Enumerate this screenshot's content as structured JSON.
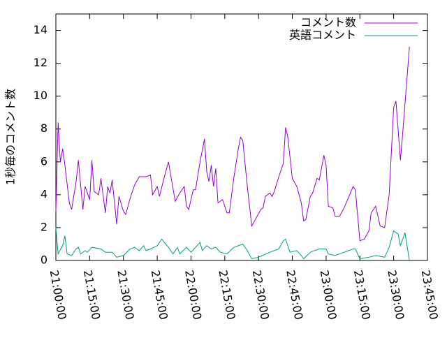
{
  "chart_data": {
    "type": "line",
    "y_label": "1秒毎のコメント数",
    "xlim": [
      "21:00:00",
      "23:45:00"
    ],
    "xticks": [
      "21:00:00",
      "21:15:00",
      "21:30:00",
      "21:45:00",
      "22:00:00",
      "22:15:00",
      "22:30:00",
      "22:45:00",
      "23:00:00",
      "23:15:00",
      "23:30:00",
      "23:45:00"
    ],
    "ylim": [
      0,
      15
    ],
    "yticks": [
      0,
      2,
      4,
      6,
      8,
      10,
      12,
      14
    ],
    "legend": "top-right",
    "series": [
      {
        "name": "コメント数",
        "color": "#9400d3",
        "x": [
          "21:00:00",
          "21:01:00",
          "21:02:00",
          "21:03:00",
          "21:04:00",
          "21:06:00",
          "21:07:00",
          "21:09:00",
          "21:10:00",
          "21:12:00",
          "21:13:00",
          "21:15:00",
          "21:16:00",
          "21:17:00",
          "21:19:00",
          "21:20:00",
          "21:22:00",
          "21:23:00",
          "21:24:00",
          "21:25:00",
          "21:27:00",
          "21:28:00",
          "21:30:00",
          "21:31:00",
          "21:33:00",
          "21:35:00",
          "21:37:00",
          "21:40:00",
          "21:42:00",
          "21:43:00",
          "21:45:00",
          "21:46:00",
          "21:48:00",
          "21:50:00",
          "21:51:00",
          "21:53:00",
          "21:55:00",
          "21:57:00",
          "21:58:00",
          "21:59:00",
          "22:01:00",
          "22:02:00",
          "22:04:00",
          "22:06:00",
          "22:07:00",
          "22:08:00",
          "22:09:00",
          "22:10:00",
          "22:11:00",
          "22:12:00",
          "22:14:00",
          "22:15:00",
          "22:16:00",
          "22:17:00",
          "22:19:00",
          "22:21:00",
          "22:22:00",
          "22:23:00",
          "22:25:00",
          "22:27:00",
          "22:29:00",
          "22:31:00",
          "22:32:00",
          "22:33:00",
          "22:35:00",
          "22:36:00",
          "22:37:00",
          "22:39:00",
          "22:41:00",
          "22:42:00",
          "22:43:00",
          "22:45:00",
          "22:47:00",
          "22:49:00",
          "22:50:00",
          "22:51:00",
          "22:53:00",
          "22:54:00",
          "22:56:00",
          "22:57:00",
          "22:59:00",
          "23:00:00",
          "23:01:00",
          "23:03:00",
          "23:04:00",
          "23:06:00",
          "23:08:00",
          "23:12:00",
          "23:13:00",
          "23:15:00",
          "23:17:00",
          "23:19:00",
          "23:20:00",
          "23:22:00",
          "23:24:00",
          "23:26:00",
          "23:28:00",
          "23:30:00",
          "23:31:00",
          "23:33:00",
          "23:34:00",
          "23:37:00"
        ],
        "values": [
          3.0,
          8.4,
          6.0,
          6.8,
          5.8,
          3.5,
          3.1,
          4.8,
          6.1,
          3.1,
          4.5,
          3.7,
          6.1,
          4.2,
          4.0,
          5.0,
          2.9,
          4.5,
          4.1,
          4.9,
          2.2,
          3.9,
          3.0,
          2.8,
          3.8,
          4.6,
          5.1,
          5.1,
          5.2,
          4.0,
          4.5,
          3.9,
          5.0,
          6.0,
          5.2,
          3.6,
          4.1,
          4.5,
          3.3,
          3.1,
          4.3,
          4.3,
          6.0,
          7.4,
          5.4,
          4.8,
          5.8,
          4.5,
          5.6,
          3.5,
          3.7,
          3.3,
          2.9,
          2.9,
          5.0,
          6.8,
          7.5,
          7.3,
          4.5,
          2.1,
          2.6,
          3.1,
          3.2,
          3.9,
          4.1,
          3.9,
          4.2,
          5.1,
          5.9,
          8.1,
          7.5,
          5.0,
          4.5,
          3.5,
          2.4,
          2.5,
          3.9,
          4.1,
          5.0,
          4.9,
          6.4,
          5.8,
          3.3,
          3.2,
          2.7,
          2.7,
          3.2,
          4.5,
          4.3,
          1.2,
          1.3,
          1.8,
          2.9,
          3.3,
          2.1,
          2.0,
          4.0,
          9.3,
          9.7,
          6.1,
          7.7,
          13.0
        ]
      },
      {
        "name": "英語コメント",
        "color": "#009e73",
        "x": [
          "21:00:00",
          "21:01:00",
          "21:03:00",
          "21:04:00",
          "21:05:00",
          "21:07:00",
          "21:09:00",
          "21:10:00",
          "21:11:00",
          "21:13:00",
          "21:14:00",
          "21:16:00",
          "21:20:00",
          "21:22:00",
          "21:25:00",
          "21:27:00",
          "21:30:00",
          "21:33:00",
          "21:35:00",
          "21:37:00",
          "21:39:00",
          "21:40:00",
          "21:42:00",
          "21:45:00",
          "21:47:00",
          "21:50:00",
          "21:52:00",
          "21:54:00",
          "21:55:00",
          "21:58:00",
          "22:00:00",
          "22:02:00",
          "22:04:00",
          "22:05:00",
          "22:07:00",
          "22:09:00",
          "22:11:00",
          "22:13:00",
          "22:16:00",
          "22:19:00",
          "22:23:00",
          "22:25:00",
          "22:27:00",
          "22:30:00",
          "22:35:00",
          "22:39:00",
          "22:41:00",
          "22:42:00",
          "22:44:00",
          "22:47:00",
          "22:49:00",
          "22:50:00",
          "22:53:00",
          "22:57:00",
          "23:00:00",
          "23:01:00",
          "23:04:00",
          "23:08:00",
          "23:12:00",
          "23:13:00",
          "23:15:00",
          "23:19:00",
          "23:22:00",
          "23:26:00",
          "23:28:00",
          "23:30:00",
          "23:32:00",
          "23:33:00",
          "23:35:00",
          "23:37:00"
        ],
        "values": [
          2.0,
          0.4,
          0.9,
          1.5,
          0.4,
          0.3,
          0.7,
          0.8,
          0.4,
          0.6,
          0.5,
          0.8,
          0.7,
          0.5,
          0.5,
          0.2,
          0.3,
          0.7,
          0.8,
          0.6,
          0.9,
          0.6,
          0.7,
          0.9,
          1.3,
          0.8,
          0.4,
          0.8,
          0.4,
          0.8,
          0.5,
          0.8,
          1.1,
          0.6,
          0.9,
          0.7,
          0.8,
          0.5,
          0.4,
          0.8,
          1.0,
          0.6,
          0.1,
          0.2,
          0.5,
          0.7,
          1.2,
          1.3,
          0.5,
          0.6,
          0.3,
          0.1,
          0.5,
          0.7,
          0.7,
          0.4,
          0.3,
          0.5,
          0.7,
          0.7,
          0.1,
          0.2,
          0.3,
          0.2,
          0.8,
          1.8,
          1.6,
          0.9,
          1.7,
          0.0
        ]
      }
    ]
  }
}
